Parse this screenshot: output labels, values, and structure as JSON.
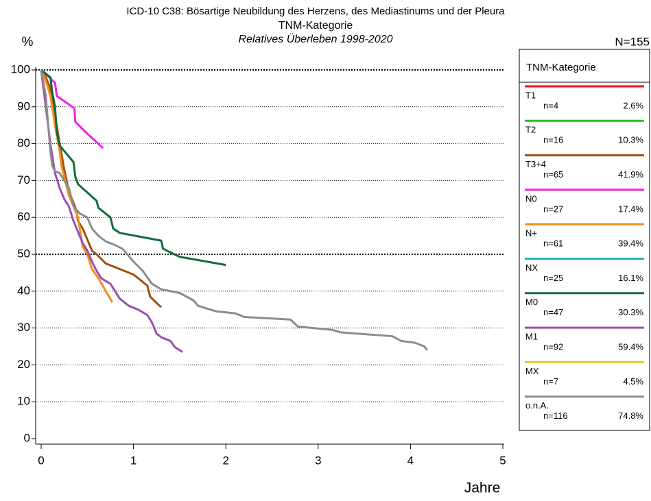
{
  "chart_data": {
    "type": "line",
    "title": "ICD-10 C38: Bösartige Neubildung des Herzens, des Mediastinums und der Pleura",
    "subtitle": "TNM-Kategorie",
    "subtitle2": "Relatives Überleben 1998-2020",
    "y_label": "%",
    "x_label": "Jahre",
    "n_total": "N=155",
    "legend_title": "TNM-Kategorie",
    "xlim": [
      0,
      5
    ],
    "xticks": [
      0,
      1,
      2,
      3,
      4,
      5
    ],
    "ylim": [
      0,
      100
    ],
    "yticks": [
      0,
      10,
      20,
      30,
      40,
      50,
      60,
      70,
      80,
      90,
      100
    ],
    "grid": true,
    "major_gridlines": [
      50,
      100
    ],
    "series": [
      {
        "name": "T1",
        "n_label": "n=4",
        "share_label": "2.6%",
        "color": "#e8141b",
        "x": [],
        "values": []
      },
      {
        "name": "T2",
        "n_label": "n=16",
        "share_label": "10.3%",
        "color": "#2dbb2d",
        "x": [],
        "values": []
      },
      {
        "name": "T3+4",
        "n_label": "n=65",
        "share_label": "41.9%",
        "color": "#a0520f",
        "x": [
          0,
          0.05,
          0.1,
          0.15,
          0.2,
          0.25,
          0.3,
          0.35,
          0.38,
          0.4,
          0.45,
          0.55,
          0.6,
          0.7,
          1.0,
          1.15,
          1.18,
          1.3
        ],
        "values": [
          100,
          98,
          95,
          88,
          80,
          73,
          67,
          64,
          62,
          59,
          57,
          51,
          50,
          47.5,
          44.5,
          41.5,
          38.5,
          35.6
        ]
      },
      {
        "name": "N0",
        "n_label": "n=27",
        "share_label": "17.4%",
        "color": "#f01ef0",
        "x": [
          0,
          0.15,
          0.17,
          0.36,
          0.37,
          0.5,
          0.67
        ],
        "values": [
          100,
          96.5,
          92.9,
          89.6,
          85.9,
          82.7,
          78.8
        ]
      },
      {
        "name": "N+",
        "n_label": "n=61",
        "share_label": "39.4%",
        "color": "#f58c1e",
        "x": [
          0,
          0.05,
          0.1,
          0.15,
          0.2,
          0.22,
          0.27,
          0.3,
          0.35,
          0.4,
          0.45,
          0.5,
          0.55,
          0.62,
          0.7,
          0.77
        ],
        "values": [
          100,
          97,
          93,
          85,
          78,
          74,
          69,
          66,
          63,
          60,
          52,
          50,
          46,
          43.5,
          40,
          37
        ]
      },
      {
        "name": "NX",
        "n_label": "n=25",
        "share_label": "16.1%",
        "color": "#22b8b8",
        "x": [],
        "values": []
      },
      {
        "name": "M0",
        "n_label": "n=47",
        "share_label": "30.3%",
        "color": "#116b3c",
        "x": [
          0,
          0.1,
          0.12,
          0.15,
          0.17,
          0.2,
          0.3,
          0.35,
          0.37,
          0.4,
          0.6,
          0.62,
          0.75,
          0.78,
          0.85,
          1.3,
          1.32,
          1.5,
          2.0
        ],
        "values": [
          100,
          98,
          94,
          90,
          83,
          79.5,
          76.5,
          75,
          71,
          69,
          64.5,
          62.6,
          60,
          57,
          55.8,
          53.7,
          51.5,
          49.3,
          47.1
        ]
      },
      {
        "name": "M1",
        "n_label": "n=92",
        "share_label": "59.4%",
        "color": "#9b4fb0",
        "x": [
          0,
          0.05,
          0.08,
          0.1,
          0.15,
          0.2,
          0.25,
          0.3,
          0.35,
          0.4,
          0.45,
          0.5,
          0.55,
          0.6,
          0.65,
          0.75,
          0.85,
          0.95,
          1.05,
          1.15,
          1.2,
          1.25,
          1.3,
          1.4,
          1.45,
          1.53
        ],
        "values": [
          100,
          90,
          84,
          80,
          72,
          68,
          65,
          63,
          59,
          56,
          53,
          51,
          48,
          45.5,
          43.5,
          42,
          38,
          36,
          35,
          33.5,
          31.5,
          28.5,
          27.5,
          26.5,
          24.8,
          23.5
        ]
      },
      {
        "name": "MX",
        "n_label": "n=7",
        "share_label": "4.5%",
        "color": "#e0cc1e",
        "x": [],
        "values": []
      },
      {
        "name": "o.n.A.",
        "n_label": "n=116",
        "share_label": "74.8%",
        "color": "#8c8c8c",
        "x": [
          0,
          0.05,
          0.08,
          0.1,
          0.12,
          0.15,
          0.2,
          0.25,
          0.3,
          0.35,
          0.42,
          0.5,
          0.55,
          0.62,
          0.7,
          0.8,
          0.88,
          0.95,
          1.0,
          1.1,
          1.2,
          1.3,
          1.5,
          1.65,
          1.7,
          1.9,
          2.1,
          2.2,
          2.7,
          2.78,
          3.15,
          3.25,
          3.8,
          3.9,
          4.05,
          4.15,
          4.18
        ],
        "values": [
          100,
          93,
          84,
          78,
          74,
          72.5,
          72,
          70,
          68,
          63,
          61,
          60,
          57,
          55,
          53.5,
          52.5,
          51.5,
          49.5,
          48,
          45.5,
          42,
          40.5,
          39.5,
          37.5,
          36,
          34.5,
          34,
          33,
          32.3,
          30.4,
          29.5,
          28.8,
          27.8,
          26.5,
          26,
          25,
          24
        ]
      }
    ]
  }
}
